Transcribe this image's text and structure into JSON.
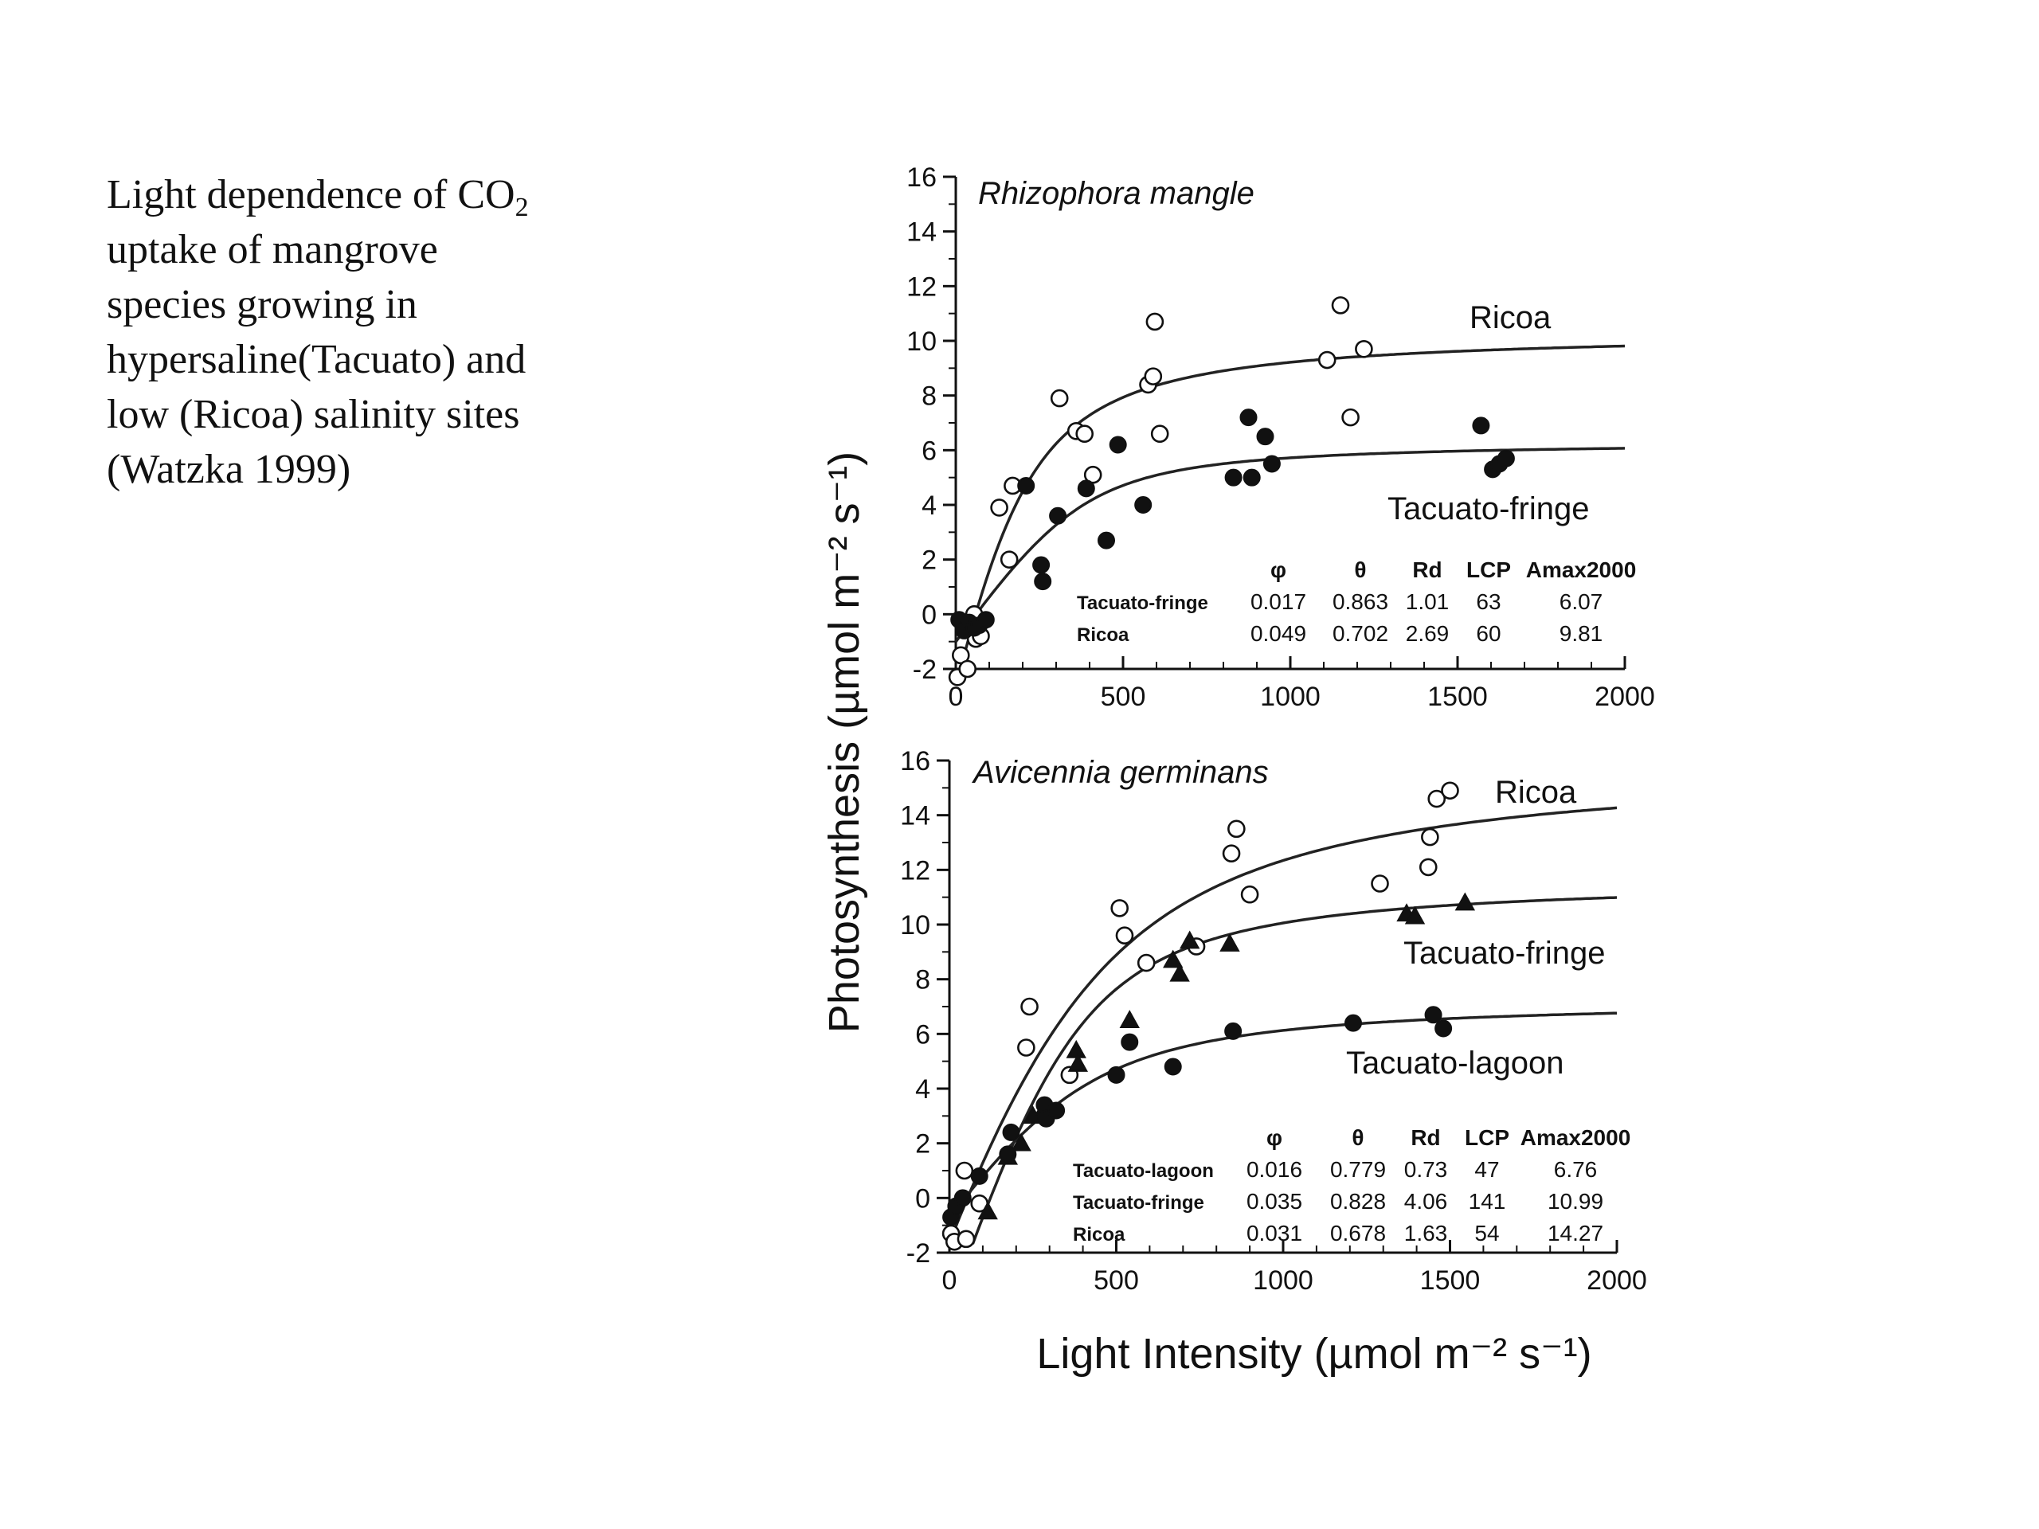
{
  "caption": {
    "line1_pre": "Light dependence of CO",
    "line1_sub": "2",
    "line2": "uptake of mangrove",
    "line3": "species growing in",
    "line4": "hypersaline(Tacuato) and",
    "line5": "low (Ricoa) salinity sites",
    "line6": "(Watzka 1999)"
  },
  "axes": {
    "ylabel": "Photosynthesis (µmol m⁻² s⁻¹)",
    "xlabel": "Light Intensity (µmol m⁻² s⁻¹)"
  },
  "chart_data": [
    {
      "type": "scatter",
      "title": "Rhizophora mangle",
      "xlim": [
        0,
        2000
      ],
      "ylim": [
        -2,
        16
      ],
      "xticks": [
        "0",
        "500",
        "1000",
        "1500",
        "2000"
      ],
      "yticks": [
        "-2",
        "0",
        "2",
        "4",
        "6",
        "8",
        "10",
        "12",
        "14",
        "16"
      ],
      "series": [
        {
          "name": "Ricoa",
          "marker": "open-circle",
          "fit": {
            "phi": 0.049,
            "theta": 0.702,
            "Rd": 2.69,
            "Amax2000": 9.81
          },
          "points": [
            [
              5,
              -2.3
            ],
            [
              15,
              -1.5
            ],
            [
              25,
              -0.5
            ],
            [
              35,
              -2.0
            ],
            [
              55,
              0.0
            ],
            [
              60,
              -0.9
            ],
            [
              75,
              -0.8
            ],
            [
              130,
              3.9
            ],
            [
              160,
              2.0
            ],
            [
              170,
              4.7
            ],
            [
              310,
              7.9
            ],
            [
              360,
              6.7
            ],
            [
              385,
              6.6
            ],
            [
              410,
              5.1
            ],
            [
              575,
              8.4
            ],
            [
              590,
              8.7
            ],
            [
              595,
              10.7
            ],
            [
              610,
              6.6
            ],
            [
              1110,
              9.3
            ],
            [
              1150,
              11.3
            ],
            [
              1180,
              7.2
            ],
            [
              1220,
              9.7
            ]
          ]
        },
        {
          "name": "Tacuato-fringe",
          "marker": "filled-circle",
          "fit": {
            "phi": 0.017,
            "theta": 0.863,
            "Rd": 1.01,
            "Amax2000": 6.07
          },
          "points": [
            [
              10,
              -0.2
            ],
            [
              25,
              -0.6
            ],
            [
              40,
              -0.3
            ],
            [
              55,
              -0.5
            ],
            [
              70,
              -0.4
            ],
            [
              90,
              -0.2
            ],
            [
              210,
              4.7
            ],
            [
              255,
              1.8
            ],
            [
              260,
              1.2
            ],
            [
              305,
              3.6
            ],
            [
              390,
              4.6
            ],
            [
              450,
              2.7
            ],
            [
              485,
              6.2
            ],
            [
              560,
              4.0
            ],
            [
              830,
              5.0
            ],
            [
              875,
              7.2
            ],
            [
              885,
              5.0
            ],
            [
              925,
              6.5
            ],
            [
              945,
              5.5
            ],
            [
              1570,
              6.9
            ],
            [
              1605,
              5.3
            ],
            [
              1625,
              5.5
            ],
            [
              1645,
              5.7
            ]
          ]
        }
      ],
      "table": {
        "headers": [
          "",
          "φ",
          "θ",
          "Rd",
          "LCP",
          "Amax2000"
        ],
        "rows": [
          [
            "Tacuato-fringe",
            "0.017",
            "0.863",
            "1.01",
            "63",
            "6.07"
          ],
          [
            "Ricoa",
            "0.049",
            "0.702",
            "2.69",
            "60",
            "9.81"
          ]
        ]
      }
    },
    {
      "type": "scatter",
      "title": "Avicennia germinans",
      "xlim": [
        0,
        2000
      ],
      "ylim": [
        -2,
        16
      ],
      "xticks": [
        "0",
        "500",
        "1000",
        "1500",
        "2000"
      ],
      "yticks": [
        "-2",
        "0",
        "2",
        "4",
        "6",
        "8",
        "10",
        "12",
        "14",
        "16"
      ],
      "series": [
        {
          "name": "Ricoa",
          "marker": "open-circle",
          "fit": {
            "phi": 0.031,
            "theta": 0.678,
            "Rd": 1.63,
            "Amax2000": 14.27
          },
          "points": [
            [
              5,
              -1.3
            ],
            [
              15,
              -1.6
            ],
            [
              45,
              1.0
            ],
            [
              50,
              -1.5
            ],
            [
              90,
              -0.2
            ],
            [
              230,
              5.5
            ],
            [
              240,
              7.0
            ],
            [
              360,
              4.5
            ],
            [
              510,
              10.6
            ],
            [
              525,
              9.6
            ],
            [
              590,
              8.6
            ],
            [
              740,
              9.2
            ],
            [
              845,
              12.6
            ],
            [
              860,
              13.5
            ],
            [
              900,
              11.1
            ],
            [
              1290,
              11.5
            ],
            [
              1435,
              12.1
            ],
            [
              1440,
              13.2
            ],
            [
              1460,
              14.6
            ],
            [
              1500,
              14.9
            ]
          ]
        },
        {
          "name": "Tacuato-fringe",
          "marker": "filled-triangle",
          "fit": {
            "phi": 0.035,
            "theta": 0.828,
            "Rd": 4.06,
            "Amax2000": 10.99
          },
          "points": [
            [
              115,
              -0.5
            ],
            [
              175,
              1.5
            ],
            [
              215,
              2.0
            ],
            [
              250,
              3.0
            ],
            [
              285,
              3.3
            ],
            [
              380,
              5.4
            ],
            [
              385,
              4.9
            ],
            [
              540,
              6.5
            ],
            [
              670,
              8.7
            ],
            [
              690,
              8.2
            ],
            [
              720,
              9.4
            ],
            [
              840,
              9.3
            ],
            [
              1370,
              10.4
            ],
            [
              1395,
              10.3
            ],
            [
              1545,
              10.8
            ]
          ]
        },
        {
          "name": "Tacuato-lagoon",
          "marker": "filled-circle",
          "fit": {
            "phi": 0.016,
            "theta": 0.779,
            "Rd": 0.73,
            "Amax2000": 6.76
          },
          "points": [
            [
              5,
              -0.7
            ],
            [
              20,
              -0.3
            ],
            [
              40,
              0.0
            ],
            [
              90,
              0.8
            ],
            [
              175,
              1.6
            ],
            [
              185,
              2.4
            ],
            [
              285,
              3.4
            ],
            [
              290,
              2.9
            ],
            [
              320,
              3.2
            ],
            [
              500,
              4.5
            ],
            [
              540,
              5.7
            ],
            [
              670,
              4.8
            ],
            [
              850,
              6.1
            ],
            [
              1210,
              6.4
            ],
            [
              1450,
              6.7
            ],
            [
              1480,
              6.2
            ]
          ]
        }
      ],
      "table": {
        "headers": [
          "",
          "φ",
          "θ",
          "Rd",
          "LCP",
          "Amax2000"
        ],
        "rows": [
          [
            "Tacuato-lagoon",
            "0.016",
            "0.779",
            "0.73",
            "47",
            "6.76"
          ],
          [
            "Tacuato-fringe",
            "0.035",
            "0.828",
            "4.06",
            "141",
            "10.99"
          ],
          [
            "Ricoa",
            "0.031",
            "0.678",
            "1.63",
            "54",
            "14.27"
          ]
        ]
      }
    }
  ]
}
